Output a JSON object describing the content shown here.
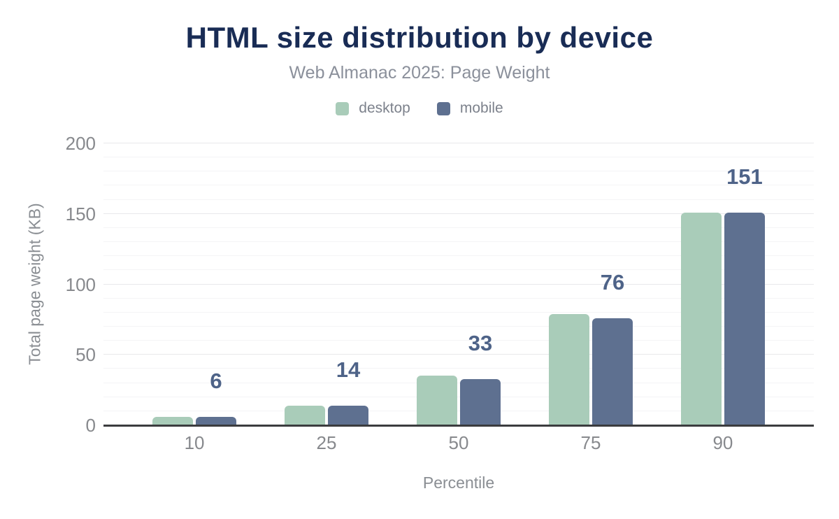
{
  "chart_data": {
    "type": "bar",
    "title": "HTML size distribution by device",
    "subtitle": "Web Almanac 2025: Page Weight",
    "categories": [
      "10",
      "25",
      "50",
      "75",
      "90"
    ],
    "series": [
      {
        "name": "desktop",
        "color": "#a9ccb9",
        "values": [
          6,
          14,
          35,
          79,
          151
        ]
      },
      {
        "name": "mobile",
        "color": "#5e7090",
        "values": [
          6,
          14,
          33,
          76,
          151
        ]
      }
    ],
    "data_labels": {
      "annotated_series": "mobile",
      "values": [
        "6",
        "14",
        "33",
        "76",
        "151"
      ],
      "color": "#4e6388"
    },
    "xlabel": "Percentile",
    "ylabel": "Total page weight (KB)",
    "ylim": [
      0,
      200
    ],
    "y_ticks": [
      0,
      50,
      100,
      150,
      200
    ],
    "y_minor_step": 10,
    "grid": true,
    "legend_position": "top",
    "axis_line_color": "#3b3c3e",
    "title_color": "#192c55",
    "background_color": "#ffffff"
  }
}
